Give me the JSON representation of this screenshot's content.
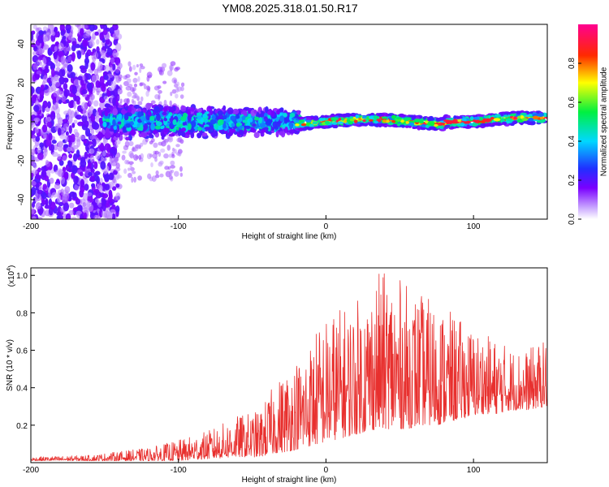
{
  "title": "YM08.2025.318.01.50.R17",
  "chart_data": [
    {
      "type": "heatmap",
      "xlabel": "Height of straight line (km)",
      "ylabel": "Frequency (Hz)",
      "xlim": [
        -200,
        150
      ],
      "ylim": [
        -50,
        50
      ],
      "x_ticks": [
        -200,
        -100,
        0,
        100
      ],
      "y_ticks": [
        -40,
        -20,
        0,
        20,
        40
      ],
      "colorbar": {
        "label": "Normalized spectral amplitude",
        "range": [
          0,
          1
        ],
        "ticks": [
          "0.0",
          "0.2",
          "0.4",
          "0.6",
          "0.8"
        ],
        "colormap": "rainbow (white-violet-blue-cyan-green-yellow-red-magenta)"
      },
      "regions": [
        {
          "x_range": [
            -200,
            -140
          ],
          "freq_spread_hz": 50,
          "amplitude": "low (0.1-0.25), scattered"
        },
        {
          "x_range": [
            -140,
            -100
          ],
          "freq_spread_hz": 30,
          "amplitude": "low, sparse"
        },
        {
          "x_range": [
            -150,
            -20
          ],
          "freq_spread_hz": 10,
          "amplitude": "0.2-0.5 band around 0 Hz"
        },
        {
          "x_range": [
            -20,
            150
          ],
          "freq_spread_hz": 3,
          "amplitude": "0.4-1.0 narrow band near 0 Hz"
        }
      ]
    },
    {
      "type": "line",
      "xlabel": "Height of straight line (km)",
      "ylabel": "SNR (10 * v/v)",
      "y_scale_label": "(x10",
      "y_scale_exp": "4",
      "y_scale_close": ")",
      "xlim": [
        -200,
        150
      ],
      "ylim": [
        0,
        1.04
      ],
      "x_ticks": [
        -200,
        -100,
        0,
        100
      ],
      "y_ticks": [
        0.2,
        0.4,
        0.6,
        0.8,
        1.0
      ],
      "series": [
        {
          "name": "SNR",
          "color": "#e8302e",
          "envelope_x": [
            -200,
            -160,
            -140,
            -120,
            -100,
            -80,
            -60,
            -45,
            -35,
            -25,
            -15,
            -5,
            5,
            15,
            25,
            35,
            45,
            55,
            65,
            75,
            85,
            95,
            105,
            115,
            125,
            135,
            150
          ],
          "envelope_peak": [
            0.03,
            0.04,
            0.06,
            0.08,
            0.12,
            0.17,
            0.25,
            0.28,
            0.42,
            0.52,
            0.6,
            0.74,
            0.82,
            0.84,
            0.9,
            1.02,
            1.02,
            0.95,
            0.9,
            0.86,
            0.8,
            0.74,
            0.7,
            0.66,
            0.62,
            0.6,
            0.66
          ],
          "envelope_base": [
            0.01,
            0.01,
            0.01,
            0.01,
            0.01,
            0.02,
            0.03,
            0.03,
            0.05,
            0.06,
            0.08,
            0.1,
            0.12,
            0.14,
            0.16,
            0.18,
            0.18,
            0.18,
            0.2,
            0.2,
            0.22,
            0.24,
            0.26,
            0.26,
            0.28,
            0.28,
            0.3
          ]
        }
      ]
    }
  ]
}
